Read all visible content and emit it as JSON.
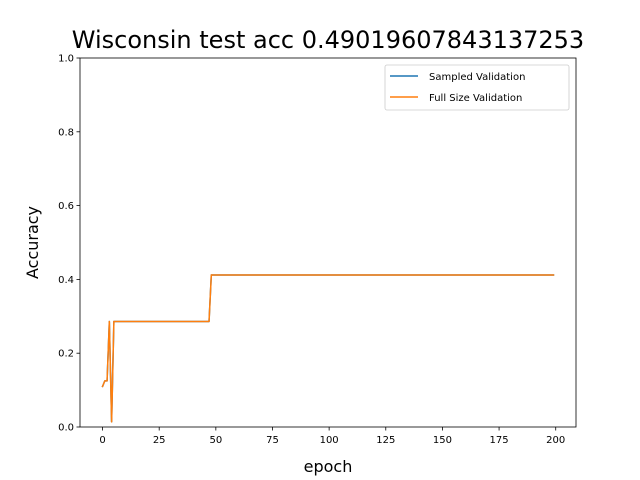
{
  "chart_data": {
    "type": "line",
    "title": "Wisconsin test acc 0.49019607843137253",
    "xlabel": "epoch",
    "ylabel": "Accuracy",
    "xlim": [
      -9.95,
      208.95
    ],
    "ylim": [
      0,
      1
    ],
    "xticks": [
      0,
      25,
      50,
      75,
      100,
      125,
      150,
      175,
      200
    ],
    "yticks": [
      0.0,
      0.2,
      0.4,
      0.6,
      0.8,
      1.0
    ],
    "xtick_labels": [
      "0",
      "25",
      "50",
      "75",
      "100",
      "125",
      "150",
      "175",
      "200"
    ],
    "ytick_labels": [
      "0.0",
      "0.2",
      "0.4",
      "0.6",
      "0.8",
      "1.0"
    ],
    "legend": {
      "placement": "top-right"
    },
    "grid": false,
    "series": [
      {
        "name": "Sampled Validation",
        "color": "#1f77b4",
        "x": [
          0,
          1,
          2,
          3,
          4,
          5,
          47,
          48,
          199
        ],
        "y": [
          0.11,
          0.125,
          0.125,
          0.286,
          0.014,
          0.286,
          0.286,
          0.412,
          0.412
        ]
      },
      {
        "name": "Full Size Validation",
        "color": "#ff7f0e",
        "x": [
          0,
          1,
          2,
          3,
          4,
          5,
          47,
          48,
          199
        ],
        "y": [
          0.11,
          0.125,
          0.125,
          0.286,
          0.014,
          0.286,
          0.286,
          0.412,
          0.412
        ]
      }
    ]
  }
}
